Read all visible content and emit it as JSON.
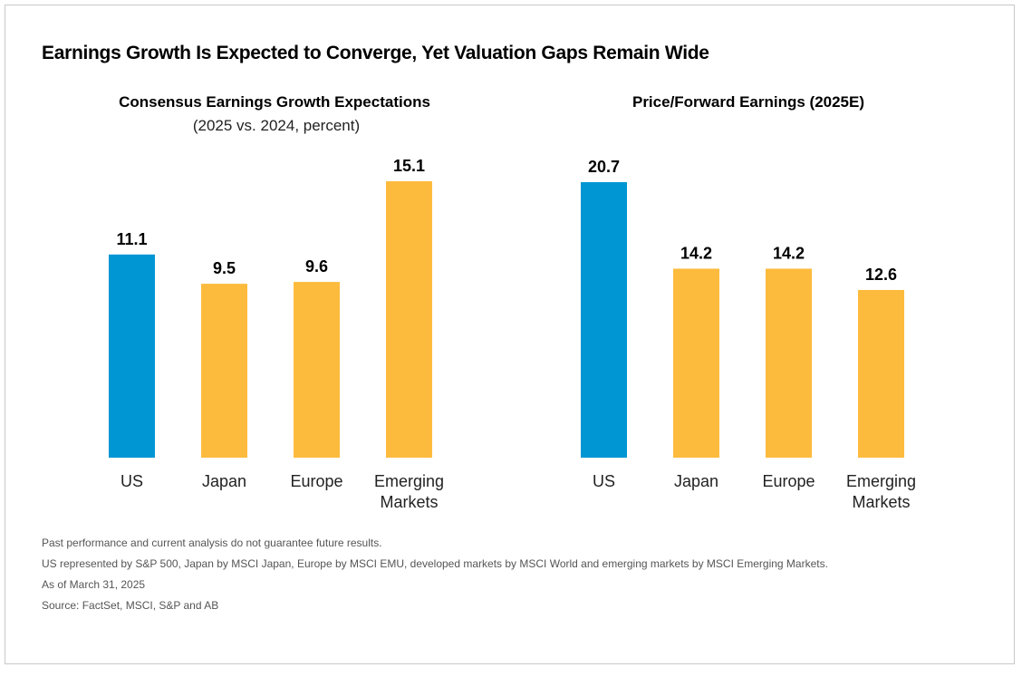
{
  "title": "Earnings Growth Is Expected to Converge, Yet Valuation Gaps Remain Wide",
  "colors": {
    "us": "#0096d4",
    "other": "#fdbb3d"
  },
  "chart_data": [
    {
      "type": "bar",
      "title": "Consensus Earnings Growth Expectations",
      "subtitle": "(2025 vs. 2024, percent)",
      "categories": [
        "US",
        "Japan",
        "Europe",
        "Emerging Markets"
      ],
      "category_lines": [
        [
          "US"
        ],
        [
          "Japan"
        ],
        [
          "Europe"
        ],
        [
          "Emerging",
          "Markets"
        ]
      ],
      "values": [
        11.1,
        9.5,
        9.6,
        15.1
      ],
      "value_labels": [
        "11.1",
        "9.5",
        "9.6",
        "15.1"
      ],
      "highlight": [
        "us",
        "other",
        "other",
        "other"
      ],
      "ylim": [
        0,
        15.1
      ],
      "grid": false
    },
    {
      "type": "bar",
      "title": "Price/Forward Earnings (2025E)",
      "subtitle": "",
      "categories": [
        "US",
        "Japan",
        "Europe",
        "Emerging Markets"
      ],
      "category_lines": [
        [
          "US"
        ],
        [
          "Japan"
        ],
        [
          "Europe"
        ],
        [
          "Emerging",
          "Markets"
        ]
      ],
      "values": [
        20.7,
        14.2,
        14.2,
        12.6
      ],
      "value_labels": [
        "20.7",
        "14.2",
        "14.2",
        "12.6"
      ],
      "highlight": [
        "us",
        "other",
        "other",
        "other"
      ],
      "ylim": [
        0,
        20.7
      ],
      "grid": false
    }
  ],
  "notes": [
    "Past performance and current analysis do not guarantee future results.",
    "US represented by S&P 500, Japan by MSCI Japan, Europe by MSCI EMU, developed markets by MSCI World and emerging markets by MSCI Emerging Markets.",
    "As of March 31, 2025",
    "Source: FactSet, MSCI, S&P and AB"
  ]
}
